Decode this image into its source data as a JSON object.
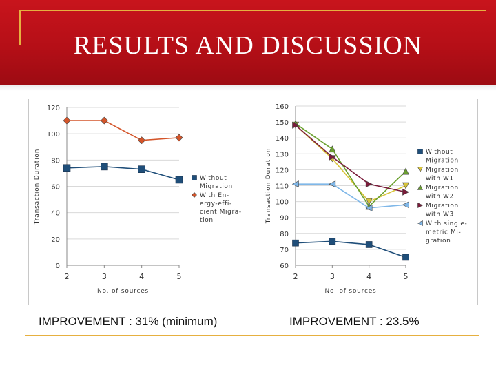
{
  "slide": {
    "title": "RESULTS AND DISCUSSION",
    "improvement_left": "IMPROVEMENT : 31% (minimum)",
    "improvement_right": "IMPROVEMENT : 23.5%",
    "colors": {
      "banner": "#b50f17",
      "accent_gold": "#e6b040"
    }
  },
  "chart_data": [
    {
      "type": "line",
      "xlabel": "No. of sources",
      "ylabel": "Transaction Duration",
      "x": [
        2,
        3,
        4,
        5
      ],
      "xticks": [
        "2",
        "3",
        "4",
        "5"
      ],
      "ylim": [
        0,
        120
      ],
      "yticks": [
        "0",
        "20",
        "40",
        "60",
        "80",
        "100",
        "120"
      ],
      "legend_position": "right",
      "series": [
        {
          "name": "Without Migration",
          "legend_lines": [
            "Without",
            "Migration"
          ],
          "values": [
            74,
            75,
            73,
            65
          ],
          "color": "#1f4e79",
          "marker": "square"
        },
        {
          "name": "With Energy-efficient Migration",
          "legend_lines": [
            "With En-",
            "ergy-effi-",
            "cient Migra-",
            "tion"
          ],
          "values": [
            110,
            110,
            95,
            97
          ],
          "color": "#d4552a",
          "marker": "diamond"
        }
      ]
    },
    {
      "type": "line",
      "xlabel": "No. of sources",
      "ylabel": "Transaction Duration",
      "x": [
        2,
        3,
        4,
        5
      ],
      "xticks": [
        "2",
        "3",
        "4",
        "5"
      ],
      "ylim": [
        60,
        160
      ],
      "yticks": [
        "60",
        "70",
        "80",
        "90",
        "100",
        "110",
        "120",
        "130",
        "140",
        "150",
        "160"
      ],
      "legend_position": "right",
      "series": [
        {
          "name": "Without Migration",
          "legend_lines": [
            "Without",
            "Migration"
          ],
          "values": [
            74,
            75,
            73,
            65
          ],
          "color": "#1f4e79",
          "marker": "square"
        },
        {
          "name": "Migration with W1",
          "legend_lines": [
            "Migration",
            "with W1"
          ],
          "values": [
            148,
            127,
            100,
            110
          ],
          "color": "#d8c43a",
          "marker": "triangle-down"
        },
        {
          "name": "Migration with W2",
          "legend_lines": [
            "Migration",
            "with W2"
          ],
          "values": [
            149,
            133,
            97,
            119
          ],
          "color": "#6aa02e",
          "marker": "triangle-up"
        },
        {
          "name": "Migration with W3",
          "legend_lines": [
            "Migration",
            "with W3"
          ],
          "values": [
            148,
            128,
            111,
            106
          ],
          "color": "#7a1c3a",
          "marker": "triangle-right"
        },
        {
          "name": "With single-metric Migration",
          "legend_lines": [
            "With single-",
            "metric Mi-",
            "gration"
          ],
          "values": [
            111,
            111,
            96,
            98
          ],
          "color": "#7fb7e8",
          "marker": "triangle-left"
        }
      ]
    }
  ]
}
